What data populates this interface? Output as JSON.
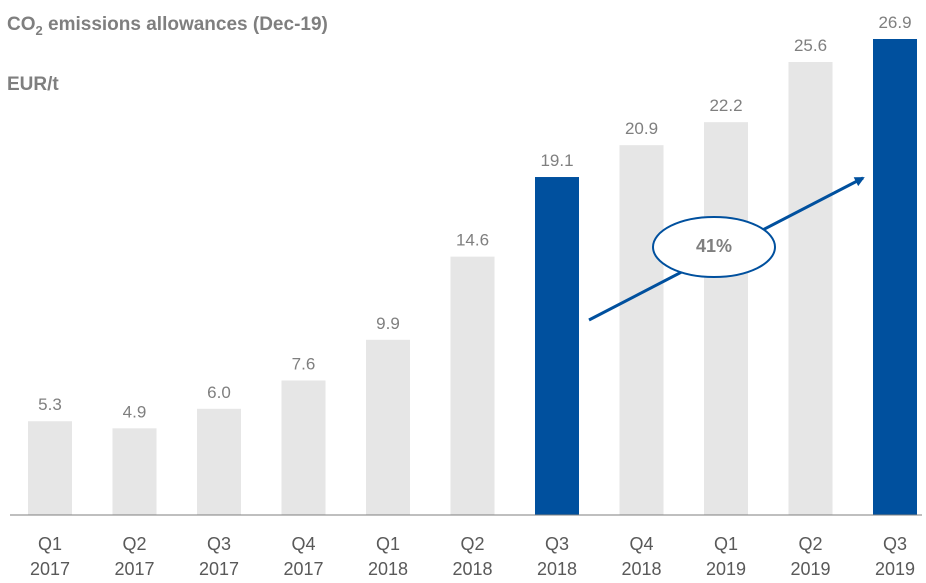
{
  "title": {
    "prefix": "CO",
    "subscript": "2",
    "suffix": " emissions allowances (Dec-19)"
  },
  "unit": "EUR/t",
  "chart_data": {
    "type": "bar",
    "categories": [
      [
        "Q1",
        "2017"
      ],
      [
        "Q2",
        "2017"
      ],
      [
        "Q3",
        "2017"
      ],
      [
        "Q4",
        "2017"
      ],
      [
        "Q1",
        "2018"
      ],
      [
        "Q2",
        "2018"
      ],
      [
        "Q3",
        "2018"
      ],
      [
        "Q4",
        "2018"
      ],
      [
        "Q1",
        "2019"
      ],
      [
        "Q2",
        "2019"
      ],
      [
        "Q3",
        "2019"
      ]
    ],
    "values": [
      5.3,
      4.9,
      6.0,
      7.6,
      9.9,
      14.6,
      19.1,
      20.9,
      22.2,
      25.6,
      26.9
    ],
    "value_labels": [
      "5.3",
      "4.9",
      "6.0",
      "7.6",
      "9.9",
      "14.6",
      "19.1",
      "20.9",
      "22.2",
      "25.6",
      "26.9"
    ],
    "highlighted": [
      "Q3 2018",
      "Q3 2019"
    ],
    "ylim": [
      0,
      26.9
    ],
    "grid": false,
    "colors": {
      "default": "#e6e6e6",
      "highlight": "#00509e",
      "text": "#7f7f7f",
      "axis": "#7f7f7f"
    },
    "annotation": {
      "text": "41%",
      "from": "Q3 2018",
      "to": "Q3 2019"
    }
  }
}
